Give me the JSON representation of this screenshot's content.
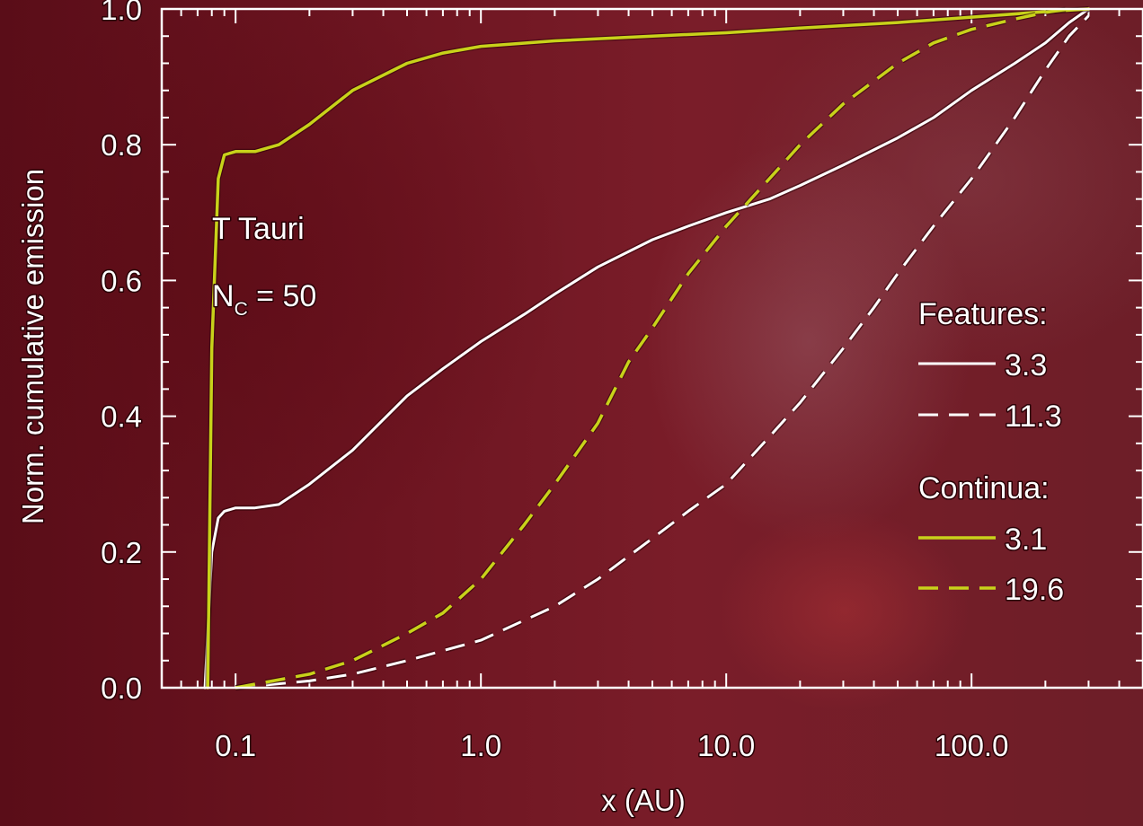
{
  "chart_data": {
    "type": "line",
    "xlabel": "x (AU)",
    "ylabel": "Norm. cumulative emission",
    "x_scale": "log",
    "xlim": [
      0.05,
      500
    ],
    "ylim": [
      0.0,
      1.0
    ],
    "x_ticks": [
      0.1,
      1.0,
      10.0,
      100.0
    ],
    "x_tick_labels": [
      "0.1",
      "1.0",
      "10.0",
      "100.0"
    ],
    "y_ticks": [
      0.0,
      0.2,
      0.4,
      0.6,
      0.8,
      1.0
    ],
    "y_tick_labels": [
      "0.0",
      "0.2",
      "0.4",
      "0.6",
      "0.8",
      "1.0"
    ],
    "annotations": {
      "object": "T Tauri",
      "nc_base": "N",
      "nc_sub": "C",
      "nc_value": " = 50"
    },
    "legend": {
      "placement": "right",
      "groups": [
        {
          "title": "Features:",
          "entries": [
            "3.3",
            "11.3"
          ]
        },
        {
          "title": "Continua:",
          "entries": [
            "3.1",
            "19.6"
          ]
        }
      ]
    },
    "colors": {
      "features": "#ffffff",
      "continua": "#c8d21a"
    },
    "series": [
      {
        "name": "3.3",
        "group": "Features",
        "color": "#ffffff",
        "dash": false,
        "x": [
          0.075,
          0.08,
          0.085,
          0.09,
          0.1,
          0.12,
          0.15,
          0.2,
          0.3,
          0.5,
          0.7,
          1.0,
          1.5,
          2.0,
          3.0,
          5.0,
          7.0,
          10.0,
          15.0,
          20.0,
          30.0,
          50.0,
          70.0,
          100.0,
          150.0,
          200.0,
          250.0,
          300.0
        ],
        "y": [
          0.0,
          0.2,
          0.25,
          0.26,
          0.265,
          0.265,
          0.27,
          0.3,
          0.35,
          0.43,
          0.47,
          0.51,
          0.55,
          0.58,
          0.62,
          0.66,
          0.68,
          0.7,
          0.72,
          0.74,
          0.77,
          0.81,
          0.84,
          0.88,
          0.92,
          0.95,
          0.98,
          1.0
        ]
      },
      {
        "name": "11.3",
        "group": "Features",
        "color": "#ffffff",
        "dash": true,
        "x": [
          0.1,
          0.2,
          0.3,
          0.5,
          1.0,
          2.0,
          3.0,
          5.0,
          7.0,
          10.0,
          15.0,
          20.0,
          30.0,
          40.0,
          50.0,
          70.0,
          100.0,
          150.0,
          200.0,
          250.0,
          300.0
        ],
        "y": [
          0.0,
          0.01,
          0.02,
          0.04,
          0.07,
          0.12,
          0.16,
          0.22,
          0.26,
          0.3,
          0.37,
          0.42,
          0.5,
          0.56,
          0.61,
          0.68,
          0.75,
          0.84,
          0.91,
          0.96,
          0.99
        ]
      },
      {
        "name": "3.1",
        "group": "Continua",
        "color": "#c8d21a",
        "dash": false,
        "x": [
          0.077,
          0.08,
          0.085,
          0.09,
          0.1,
          0.12,
          0.15,
          0.2,
          0.3,
          0.5,
          0.7,
          1.0,
          2.0,
          5.0,
          10.0,
          20.0,
          50.0,
          100.0,
          200.0,
          300.0
        ],
        "y": [
          0.0,
          0.5,
          0.75,
          0.785,
          0.79,
          0.79,
          0.8,
          0.83,
          0.88,
          0.92,
          0.935,
          0.945,
          0.953,
          0.96,
          0.965,
          0.972,
          0.98,
          0.988,
          0.996,
          1.0
        ]
      },
      {
        "name": "19.6",
        "group": "Continua",
        "color": "#c8d21a",
        "dash": true,
        "x": [
          0.1,
          0.2,
          0.3,
          0.5,
          0.7,
          1.0,
          1.5,
          2.0,
          3.0,
          4.0,
          5.0,
          7.0,
          10.0,
          15.0,
          20.0,
          30.0,
          50.0,
          70.0,
          100.0,
          150.0,
          200.0,
          250.0
        ],
        "y": [
          0.0,
          0.02,
          0.04,
          0.08,
          0.11,
          0.16,
          0.24,
          0.3,
          0.39,
          0.48,
          0.53,
          0.61,
          0.68,
          0.75,
          0.8,
          0.86,
          0.92,
          0.95,
          0.97,
          0.985,
          0.995,
          1.0
        ]
      }
    ]
  }
}
